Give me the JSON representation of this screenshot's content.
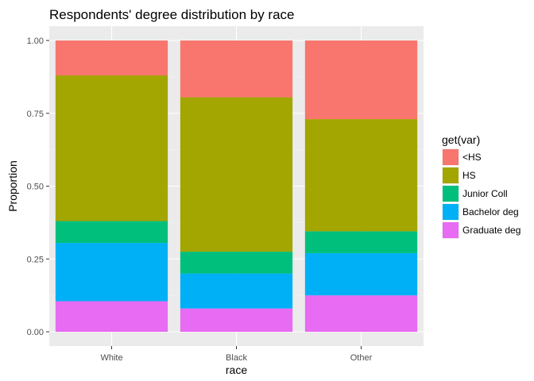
{
  "chart_data": {
    "type": "bar",
    "stacked": true,
    "title": "Respondents' degree distribution by race",
    "xlabel": "race",
    "ylabel": "Proportion",
    "categories": [
      "White",
      "Black",
      "Other"
    ],
    "ylim": [
      0,
      1
    ],
    "yticks": [
      "0.00",
      "0.25",
      "0.50",
      "0.75",
      "1.00"
    ],
    "grid": true,
    "legend": {
      "title": "get(var)",
      "position": "right"
    },
    "series": [
      {
        "name": "<HS",
        "color": "#F8766D",
        "values": [
          0.12,
          0.195,
          0.27
        ]
      },
      {
        "name": "HS",
        "color": "#A3A500",
        "values": [
          0.5,
          0.53,
          0.385
        ]
      },
      {
        "name": "Junior Coll",
        "color": "#00BF7D",
        "values": [
          0.075,
          0.075,
          0.075
        ]
      },
      {
        "name": "Bachelor deg",
        "color": "#00B0F6",
        "values": [
          0.2,
          0.12,
          0.145
        ]
      },
      {
        "name": "Graduate deg",
        "color": "#E76BF3",
        "values": [
          0.105,
          0.08,
          0.125
        ]
      }
    ]
  }
}
